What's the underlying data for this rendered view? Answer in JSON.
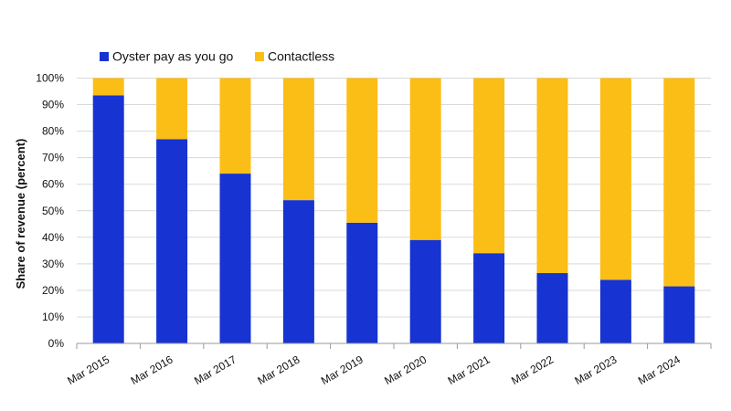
{
  "chart_data": {
    "type": "bar",
    "stacked": true,
    "categories": [
      "Mar 2015",
      "Mar 2016",
      "Mar 2017",
      "Mar 2018",
      "Mar 2019",
      "Mar 2020",
      "Mar 2021",
      "Mar 2022",
      "Mar 2023",
      "Mar 2024"
    ],
    "series": [
      {
        "name": "Oyster pay as you go",
        "color": "#1733d1",
        "values": [
          93.5,
          77,
          64,
          54,
          45.5,
          39,
          34,
          26.5,
          24,
          21.5
        ]
      },
      {
        "name": "Contactless",
        "color": "#fbbe17",
        "values": [
          6.5,
          23,
          36,
          46,
          54.5,
          61,
          66,
          73.5,
          76,
          78.5
        ]
      }
    ],
    "title": "",
    "xlabel": "",
    "ylabel": "Share of revenue (percent)",
    "ylim": [
      0,
      100
    ],
    "yticks": [
      0,
      10,
      20,
      30,
      40,
      50,
      60,
      70,
      80,
      90,
      100
    ],
    "ytick_labels": [
      "0%",
      "10%",
      "20%",
      "30%",
      "40%",
      "50%",
      "60%",
      "70%",
      "80%",
      "90%",
      "100%"
    ],
    "grid": true,
    "legend": "top-left",
    "gridline_color": "#d9d9d9"
  }
}
